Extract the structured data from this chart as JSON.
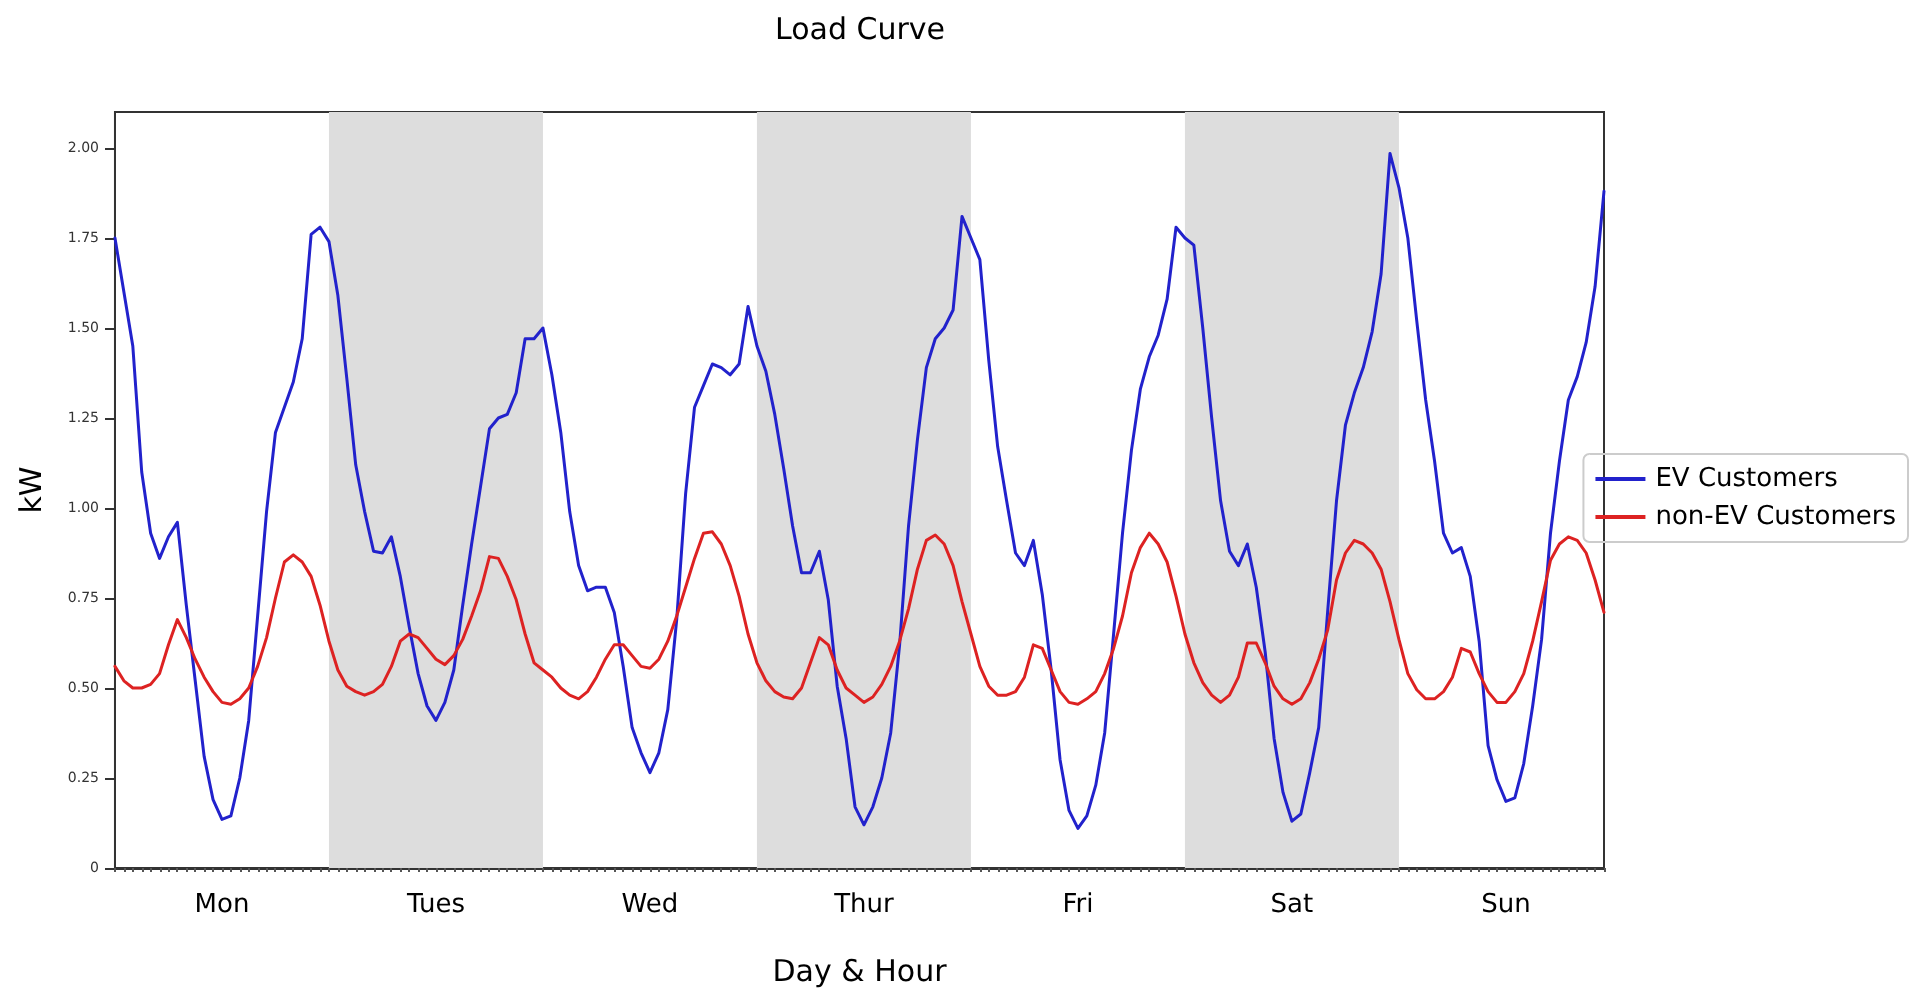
{
  "chart_data": {
    "type": "line",
    "title": "Load Curve",
    "xlabel": "Day & Hour",
    "ylabel": "kW",
    "categories": [
      null,
      null,
      null,
      null,
      null,
      null,
      null,
      null,
      null,
      null,
      null,
      null,
      "Mon",
      null,
      null,
      null,
      null,
      null,
      null,
      null,
      null,
      null,
      null,
      null,
      null,
      null,
      null,
      null,
      null,
      null,
      null,
      null,
      null,
      null,
      null,
      null,
      "Tues",
      null,
      null,
      null,
      null,
      null,
      null,
      null,
      null,
      null,
      null,
      null,
      null,
      null,
      null,
      null,
      null,
      null,
      null,
      null,
      null,
      null,
      null,
      null,
      "Wed",
      null,
      null,
      null,
      null,
      null,
      null,
      null,
      null,
      null,
      null,
      null,
      null,
      null,
      null,
      null,
      null,
      null,
      null,
      null,
      null,
      null,
      null,
      null,
      "Thur",
      null,
      null,
      null,
      null,
      null,
      null,
      null,
      null,
      null,
      null,
      null,
      null,
      null,
      null,
      null,
      null,
      null,
      null,
      null,
      null,
      null,
      null,
      null,
      "Fri",
      null,
      null,
      null,
      null,
      null,
      null,
      null,
      null,
      null,
      null,
      null,
      null,
      null,
      null,
      null,
      null,
      null,
      null,
      null,
      null,
      null,
      null,
      null,
      "Sat",
      null,
      null,
      null,
      null,
      null,
      null,
      null,
      null,
      null,
      null,
      null,
      null,
      null,
      null,
      null,
      null,
      null,
      null,
      null,
      null,
      null,
      null,
      null,
      "Sun",
      null,
      null,
      null,
      null,
      null,
      null,
      null,
      null,
      null,
      null,
      null
    ],
    "ylim": [
      0,
      2.1
    ],
    "yticks": [
      0,
      {
        "value": 0.25,
        "label": "0.25"
      },
      {
        "value": 0.5,
        "label": "0.50"
      },
      {
        "value": 0.75,
        "label": "0.75"
      },
      {
        "value": 1,
        "label": "1.00"
      },
      {
        "value": 1.25,
        "label": "1.25"
      },
      {
        "value": 1.5,
        "label": "1.50"
      },
      {
        "value": 1.75,
        "label": "1.75"
      },
      {
        "value": 2,
        "label": "2.00"
      }
    ],
    "grid": false,
    "legend": "right",
    "marker": "none",
    "line_style": "solid",
    "series": [
      {
        "name": "EV Customers",
        "color": "#2222cc",
        "values": [
          1.75,
          1.6,
          1.45,
          1.1,
          0.93,
          0.86,
          0.92,
          0.96,
          0.73,
          0.52,
          0.31,
          0.19,
          0.135,
          0.145,
          0.25,
          0.41,
          0.7,
          0.99,
          1.21,
          1.28,
          1.35,
          1.47,
          1.76,
          1.78,
          1.74,
          1.59,
          1.36,
          1.12,
          0.99,
          0.88,
          0.875,
          0.92,
          0.81,
          0.67,
          0.54,
          0.45,
          0.41,
          0.46,
          0.55,
          0.73,
          0.9,
          1.06,
          1.22,
          1.25,
          1.26,
          1.32,
          1.47,
          1.47,
          1.5,
          1.37,
          1.21,
          0.99,
          0.84,
          0.77,
          0.78,
          0.78,
          0.71,
          0.56,
          0.39,
          0.32,
          0.265,
          0.32,
          0.44,
          0.69,
          1.04,
          1.28,
          1.34,
          1.4,
          1.39,
          1.37,
          1.4,
          1.56,
          1.45,
          1.38,
          1.26,
          1.11,
          0.95,
          0.82,
          0.82,
          0.88,
          0.745,
          0.505,
          0.36,
          0.17,
          0.12,
          0.17,
          0.25,
          0.375,
          0.62,
          0.95,
          1.19,
          1.39,
          1.47,
          1.5,
          1.55,
          1.81,
          1.75,
          1.69,
          1.41,
          1.17,
          1.02,
          0.875,
          0.84,
          0.91,
          0.76,
          0.55,
          0.3,
          0.16,
          0.11,
          0.145,
          0.23,
          0.375,
          0.65,
          0.93,
          1.16,
          1.33,
          1.42,
          1.48,
          1.58,
          1.78,
          1.75,
          1.73,
          1.5,
          1.25,
          1.02,
          0.88,
          0.84,
          0.9,
          0.78,
          0.6,
          0.36,
          0.21,
          0.13,
          0.15,
          0.265,
          0.39,
          0.71,
          1.02,
          1.23,
          1.32,
          1.39,
          1.49,
          1.65,
          1.985,
          1.89,
          1.75,
          1.52,
          1.3,
          1.13,
          0.93,
          0.875,
          0.89,
          0.81,
          0.63,
          0.34,
          0.245,
          0.185,
          0.195,
          0.29,
          0.45,
          0.635,
          0.93,
          1.13,
          1.3,
          1.365,
          1.46,
          1.615,
          1.88
        ]
      },
      {
        "name": "non-EV Customers",
        "color": "#dd2222",
        "values": [
          0.56,
          0.52,
          0.5,
          0.5,
          0.51,
          0.54,
          0.62,
          0.69,
          0.64,
          0.58,
          0.53,
          0.49,
          0.46,
          0.455,
          0.47,
          0.5,
          0.56,
          0.64,
          0.75,
          0.85,
          0.87,
          0.85,
          0.81,
          0.73,
          0.63,
          0.55,
          0.505,
          0.49,
          0.48,
          0.49,
          0.51,
          0.56,
          0.63,
          0.65,
          0.64,
          0.61,
          0.58,
          0.565,
          0.59,
          0.635,
          0.7,
          0.77,
          0.865,
          0.86,
          0.81,
          0.745,
          0.65,
          0.57,
          0.55,
          0.53,
          0.5,
          0.48,
          0.47,
          0.49,
          0.53,
          0.58,
          0.62,
          0.62,
          0.59,
          0.56,
          0.555,
          0.58,
          0.63,
          0.7,
          0.78,
          0.86,
          0.93,
          0.934,
          0.9,
          0.84,
          0.755,
          0.65,
          0.57,
          0.52,
          0.49,
          0.475,
          0.47,
          0.5,
          0.57,
          0.64,
          0.62,
          0.55,
          0.5,
          0.48,
          0.46,
          0.475,
          0.51,
          0.56,
          0.63,
          0.72,
          0.83,
          0.91,
          0.925,
          0.9,
          0.84,
          0.74,
          0.65,
          0.56,
          0.505,
          0.48,
          0.48,
          0.49,
          0.53,
          0.62,
          0.61,
          0.55,
          0.49,
          0.46,
          0.455,
          0.47,
          0.49,
          0.54,
          0.61,
          0.7,
          0.82,
          0.89,
          0.93,
          0.9,
          0.85,
          0.755,
          0.65,
          0.57,
          0.515,
          0.48,
          0.46,
          0.48,
          0.53,
          0.625,
          0.625,
          0.57,
          0.505,
          0.47,
          0.455,
          0.47,
          0.515,
          0.58,
          0.66,
          0.8,
          0.875,
          0.91,
          0.9,
          0.875,
          0.83,
          0.74,
          0.635,
          0.54,
          0.495,
          0.47,
          0.47,
          0.49,
          0.53,
          0.61,
          0.6,
          0.54,
          0.49,
          0.46,
          0.46,
          0.49,
          0.54,
          0.63,
          0.74,
          0.855,
          0.9,
          0.92,
          0.91,
          0.875,
          0.8,
          0.71
        ]
      }
    ]
  }
}
